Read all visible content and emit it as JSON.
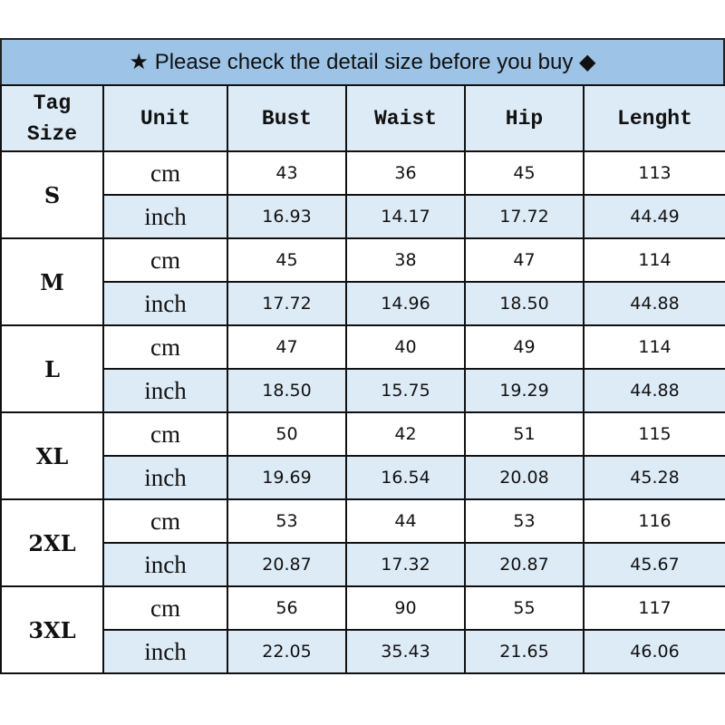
{
  "title": {
    "star": "★",
    "text": "Please check the detail size before you buy",
    "diamond": "◆"
  },
  "headers": [
    "Tag Size",
    "Unit",
    "Bust",
    "Waist",
    "Hip",
    "Lenght"
  ],
  "colors": {
    "title_bg": "#9dc3e6",
    "header_bg": "#ddebf7",
    "inch_row_bg": "#ddebf7"
  },
  "rows": [
    {
      "size": "S",
      "cm": {
        "unit": "cm",
        "values": [
          "43",
          "36",
          "45",
          "113"
        ]
      },
      "inch": {
        "unit": "inch",
        "values": [
          "16.93",
          "14.17",
          "17.72",
          "44.49"
        ]
      }
    },
    {
      "size": "M",
      "cm": {
        "unit": "cm",
        "values": [
          "45",
          "38",
          "47",
          "114"
        ]
      },
      "inch": {
        "unit": "inch",
        "values": [
          "17.72",
          "14.96",
          "18.50",
          "44.88"
        ]
      }
    },
    {
      "size": "L",
      "cm": {
        "unit": "cm",
        "values": [
          "47",
          "40",
          "49",
          "114"
        ]
      },
      "inch": {
        "unit": "inch",
        "values": [
          "18.50",
          "15.75",
          "19.29",
          "44.88"
        ]
      }
    },
    {
      "size": "XL",
      "cm": {
        "unit": "cm",
        "values": [
          "50",
          "42",
          "51",
          "115"
        ]
      },
      "inch": {
        "unit": "inch",
        "values": [
          "19.69",
          "16.54",
          "20.08",
          "45.28"
        ]
      }
    },
    {
      "size": "2XL",
      "cm": {
        "unit": "cm",
        "values": [
          "53",
          "44",
          "53",
          "116"
        ]
      },
      "inch": {
        "unit": "inch",
        "values": [
          "20.87",
          "17.32",
          "20.87",
          "45.67"
        ]
      }
    },
    {
      "size": "3XL",
      "cm": {
        "unit": "cm",
        "values": [
          "56",
          "90",
          "55",
          "117"
        ]
      },
      "inch": {
        "unit": "inch",
        "values": [
          "22.05",
          "35.43",
          "21.65",
          "46.06"
        ]
      }
    }
  ]
}
